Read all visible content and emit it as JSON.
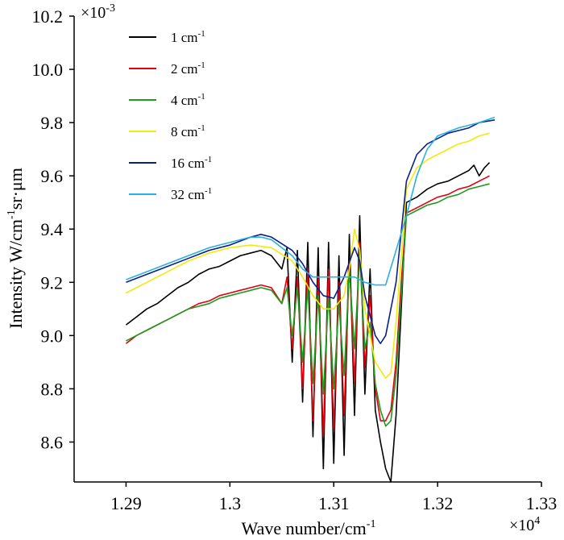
{
  "chart_data": {
    "type": "line",
    "xlabel": "Wave number/cm",
    "xlabel_sup": "-1",
    "x_exponent": "×10",
    "x_exponent_sup": "4",
    "ylabel": "Intensity W/cm",
    "ylabel_sup": "-1",
    "ylabel_tail": "sr·μm",
    "y_exponent": "×10",
    "y_exponent_sup": "-3",
    "xlim": [
      1.285,
      1.33
    ],
    "ylim": [
      8.45,
      10.2
    ],
    "x_ticks": [
      1.29,
      1.3,
      1.31,
      1.32,
      1.33
    ],
    "x_tick_labels": [
      "1.29",
      "1.3",
      "1.31",
      "1.32",
      "1.33"
    ],
    "y_ticks": [
      8.6,
      8.8,
      9.0,
      9.2,
      9.4,
      9.6,
      9.8,
      10.0,
      10.2
    ],
    "y_tick_labels": [
      "8.6",
      "8.8",
      "9.0",
      "9.2",
      "9.4",
      "9.6",
      "9.8",
      "10.0",
      "10.2"
    ],
    "grid": false,
    "legend_position": "top-left",
    "series": [
      {
        "name": "1 cm",
        "name_sup": "-1",
        "color": "#000000",
        "x": [
          1.29,
          1.291,
          1.292,
          1.293,
          1.294,
          1.295,
          1.296,
          1.297,
          1.298,
          1.299,
          1.3,
          1.301,
          1.302,
          1.303,
          1.304,
          1.305,
          1.3055,
          1.306,
          1.3065,
          1.307,
          1.3075,
          1.308,
          1.3085,
          1.309,
          1.3095,
          1.31,
          1.3105,
          1.311,
          1.3115,
          1.312,
          1.3125,
          1.313,
          1.3135,
          1.314,
          1.3145,
          1.315,
          1.3155,
          1.316,
          1.3165,
          1.317,
          1.318,
          1.319,
          1.32,
          1.321,
          1.322,
          1.323,
          1.3235,
          1.324,
          1.3245,
          1.325
        ],
        "y": [
          9.04,
          9.07,
          9.1,
          9.12,
          9.15,
          9.18,
          9.2,
          9.23,
          9.25,
          9.26,
          9.28,
          9.3,
          9.31,
          9.32,
          9.3,
          9.25,
          9.33,
          8.9,
          9.32,
          8.75,
          9.35,
          8.62,
          9.33,
          8.5,
          9.35,
          8.52,
          9.3,
          8.55,
          9.38,
          8.7,
          9.45,
          8.78,
          9.25,
          8.72,
          8.6,
          8.5,
          8.45,
          8.7,
          9.1,
          9.5,
          9.52,
          9.55,
          9.57,
          9.58,
          9.6,
          9.62,
          9.64,
          9.6,
          9.63,
          9.65
        ]
      },
      {
        "name": "2 cm",
        "name_sup": "-1",
        "color": "#e3000f",
        "x": [
          1.29,
          1.291,
          1.292,
          1.293,
          1.294,
          1.295,
          1.296,
          1.297,
          1.298,
          1.299,
          1.3,
          1.301,
          1.302,
          1.303,
          1.304,
          1.305,
          1.3055,
          1.306,
          1.3065,
          1.307,
          1.3075,
          1.308,
          1.3085,
          1.309,
          1.3095,
          1.31,
          1.3105,
          1.311,
          1.3115,
          1.312,
          1.3125,
          1.313,
          1.3135,
          1.314,
          1.3145,
          1.315,
          1.3155,
          1.316,
          1.3165,
          1.317,
          1.318,
          1.319,
          1.32,
          1.321,
          1.322,
          1.323,
          1.324,
          1.325
        ],
        "y": [
          8.97,
          9.0,
          9.02,
          9.04,
          9.06,
          9.08,
          9.1,
          9.12,
          9.13,
          9.15,
          9.16,
          9.17,
          9.18,
          9.19,
          9.18,
          9.12,
          9.22,
          8.95,
          9.22,
          8.8,
          9.25,
          8.68,
          9.22,
          8.62,
          9.25,
          8.65,
          9.2,
          8.7,
          9.28,
          8.82,
          9.35,
          8.88,
          9.15,
          8.8,
          8.68,
          8.68,
          8.72,
          8.9,
          9.2,
          9.46,
          9.48,
          9.5,
          9.52,
          9.53,
          9.55,
          9.56,
          9.58,
          9.6
        ]
      },
      {
        "name": "4 cm",
        "name_sup": "-1",
        "color": "#1e9a1e",
        "x": [
          1.29,
          1.291,
          1.292,
          1.293,
          1.294,
          1.295,
          1.296,
          1.297,
          1.298,
          1.299,
          1.3,
          1.301,
          1.302,
          1.303,
          1.304,
          1.305,
          1.3055,
          1.306,
          1.3065,
          1.307,
          1.3075,
          1.308,
          1.3085,
          1.309,
          1.3095,
          1.31,
          1.3105,
          1.311,
          1.3115,
          1.312,
          1.3125,
          1.313,
          1.3135,
          1.314,
          1.3145,
          1.315,
          1.3155,
          1.316,
          1.3165,
          1.317,
          1.318,
          1.319,
          1.32,
          1.321,
          1.322,
          1.323,
          1.324,
          1.325
        ],
        "y": [
          8.98,
          9.0,
          9.02,
          9.04,
          9.06,
          9.08,
          9.1,
          9.11,
          9.12,
          9.14,
          9.15,
          9.16,
          9.17,
          9.18,
          9.17,
          9.12,
          9.18,
          9.0,
          9.18,
          8.9,
          9.18,
          8.82,
          9.15,
          8.78,
          9.15,
          8.8,
          9.12,
          8.85,
          9.25,
          8.95,
          9.3,
          8.95,
          9.05,
          8.82,
          8.72,
          8.66,
          8.68,
          8.85,
          9.15,
          9.45,
          9.47,
          9.49,
          9.5,
          9.52,
          9.53,
          9.55,
          9.56,
          9.57
        ]
      },
      {
        "name": "8 cm",
        "name_sup": "-1",
        "color": "#f2ea0a",
        "x": [
          1.29,
          1.292,
          1.294,
          1.296,
          1.298,
          1.3,
          1.302,
          1.304,
          1.306,
          1.307,
          1.308,
          1.309,
          1.31,
          1.311,
          1.3115,
          1.312,
          1.3125,
          1.313,
          1.314,
          1.315,
          1.3155,
          1.316,
          1.317,
          1.318,
          1.319,
          1.32,
          1.321,
          1.322,
          1.323,
          1.324,
          1.325
        ],
        "y": [
          9.16,
          9.2,
          9.24,
          9.28,
          9.31,
          9.33,
          9.34,
          9.33,
          9.28,
          9.22,
          9.15,
          9.1,
          9.1,
          9.15,
          9.25,
          9.4,
          9.32,
          9.1,
          8.9,
          8.84,
          8.86,
          9.05,
          9.55,
          9.63,
          9.66,
          9.68,
          9.7,
          9.72,
          9.73,
          9.75,
          9.76
        ]
      },
      {
        "name": "16 cm",
        "name_sup": "-1",
        "color": "#0b1f8a",
        "x": [
          1.29,
          1.292,
          1.294,
          1.296,
          1.298,
          1.3,
          1.302,
          1.303,
          1.304,
          1.306,
          1.307,
          1.308,
          1.309,
          1.31,
          1.311,
          1.312,
          1.3125,
          1.313,
          1.314,
          1.3145,
          1.315,
          1.316,
          1.317,
          1.318,
          1.319,
          1.32,
          1.321,
          1.322,
          1.323,
          1.324,
          1.3255
        ],
        "y": [
          9.2,
          9.23,
          9.26,
          9.29,
          9.32,
          9.34,
          9.37,
          9.38,
          9.37,
          9.32,
          9.27,
          9.2,
          9.15,
          9.14,
          9.22,
          9.33,
          9.28,
          9.15,
          9.0,
          8.97,
          9.0,
          9.2,
          9.58,
          9.68,
          9.72,
          9.74,
          9.76,
          9.77,
          9.78,
          9.8,
          9.81
        ]
      },
      {
        "name": "32 cm",
        "name_sup": "-1",
        "color": "#2ab1de",
        "x": [
          1.29,
          1.292,
          1.294,
          1.296,
          1.298,
          1.3,
          1.302,
          1.303,
          1.304,
          1.306,
          1.307,
          1.308,
          1.31,
          1.312,
          1.313,
          1.314,
          1.315,
          1.317,
          1.318,
          1.319,
          1.32,
          1.322,
          1.324,
          1.3255
        ],
        "y": [
          9.21,
          9.24,
          9.27,
          9.3,
          9.33,
          9.35,
          9.37,
          9.37,
          9.36,
          9.3,
          9.25,
          9.22,
          9.22,
          9.22,
          9.2,
          9.19,
          9.19,
          9.45,
          9.6,
          9.7,
          9.75,
          9.78,
          9.8,
          9.82
        ]
      }
    ]
  }
}
